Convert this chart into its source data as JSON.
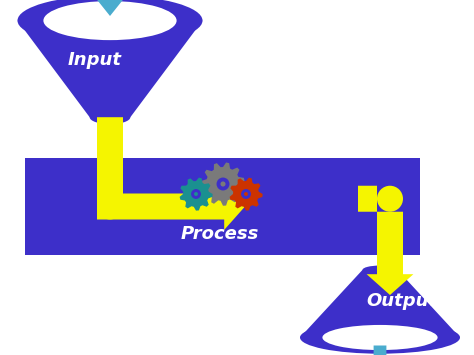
{
  "bg_color": "#ffffff",
  "purple": "#3d2fc9",
  "yellow": "#f5f500",
  "blue_arrow": "#4aacce",
  "gear_gray": "#7a7a7a",
  "gear_teal": "#1a9090",
  "gear_red": "#cc3300",
  "labels": [
    "Input",
    "Process",
    "Output"
  ],
  "label_color": "#ffffff",
  "label_fontsize": 13,
  "figsize": [
    4.74,
    3.55
  ],
  "dpi": 100
}
